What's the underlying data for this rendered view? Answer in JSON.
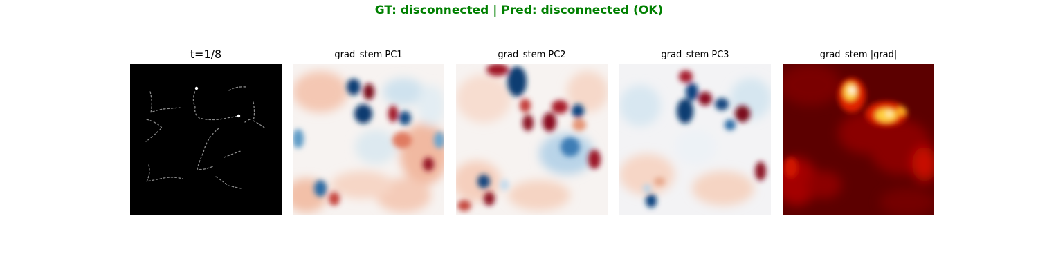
{
  "header": {
    "title": "GT: disconnected | Pred: disconnected (OK)",
    "title_color": "#008000"
  },
  "chart_data": [
    {
      "type": "heatmap",
      "title": "t=1/8",
      "colormap": "gray",
      "content": "input frame: dashed gray curve segments on black background"
    },
    {
      "type": "heatmap",
      "title": "grad_stem PC1",
      "colormap": "RdBu_r"
    },
    {
      "type": "heatmap",
      "title": "grad_stem PC2",
      "colormap": "RdBu_r"
    },
    {
      "type": "heatmap",
      "title": "grad_stem PC3",
      "colormap": "RdBu_r"
    },
    {
      "type": "heatmap",
      "title": "grad_stem |grad|",
      "colormap": "hot"
    }
  ]
}
